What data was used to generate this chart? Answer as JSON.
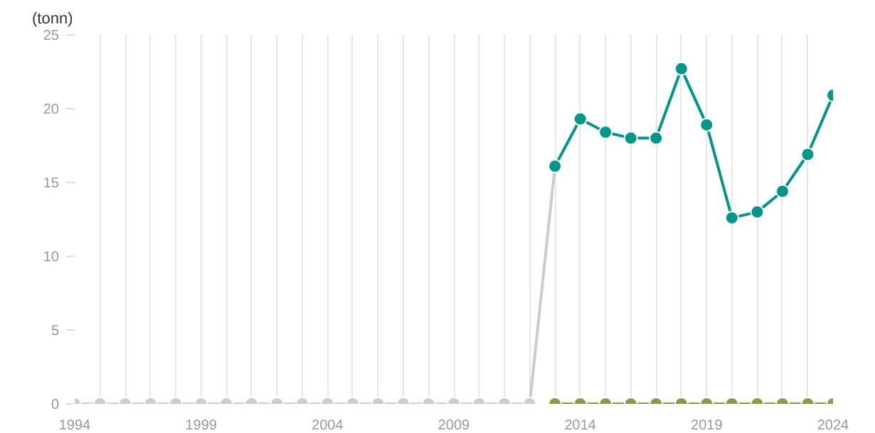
{
  "chart_data": {
    "type": "line",
    "ylabel": "(tonn)",
    "series": [
      {
        "color": "#cccccc",
        "x": [
          1994,
          1995,
          1996,
          1997,
          1998,
          1999,
          2000,
          2001,
          2002,
          2003,
          2004,
          2005,
          2006,
          2007,
          2008,
          2009,
          2010,
          2011,
          2012,
          2013
        ],
        "values": [
          0,
          0,
          0,
          0,
          0,
          0,
          0,
          0,
          0,
          0,
          0,
          0,
          0,
          0,
          0,
          0,
          0,
          0,
          0,
          16.1
        ]
      },
      {
        "color": "#8c9a48",
        "x": [
          2013,
          2014,
          2015,
          2016,
          2017,
          2018,
          2019,
          2020,
          2021,
          2022,
          2023,
          2024
        ],
        "values": [
          0,
          0,
          0,
          0,
          0,
          0,
          0,
          0,
          0,
          0,
          0,
          0
        ]
      },
      {
        "color": "#00968a",
        "x": [
          2013,
          2014,
          2015,
          2016,
          2017,
          2018,
          2019,
          2020,
          2021,
          2022,
          2023,
          2024
        ],
        "values": [
          16.1,
          19.3,
          18.4,
          18.0,
          18.0,
          22.7,
          18.9,
          12.6,
          13.0,
          14.4,
          16.9,
          20.9
        ]
      }
    ],
    "xlim": [
      1994,
      2024
    ],
    "ylim": [
      0,
      25
    ],
    "xticks": [
      1994,
      1999,
      2004,
      2009,
      2014,
      2019,
      2024
    ],
    "yticks": [
      0,
      5,
      10,
      15,
      20,
      25
    ],
    "grid": "x",
    "marker": "circle",
    "line_style": "solid"
  }
}
